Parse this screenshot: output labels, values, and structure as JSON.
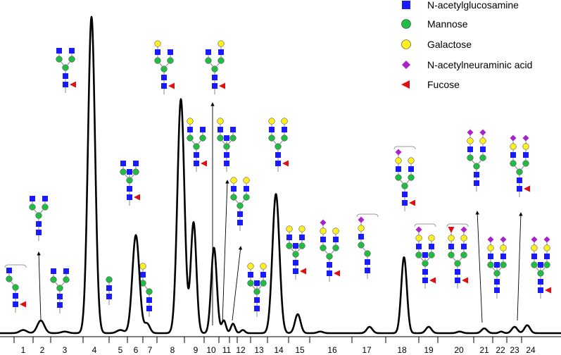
{
  "chart_data": {
    "type": "line",
    "title": "",
    "xlabel": "",
    "ylabel": "",
    "x_tick_labels": [
      "1",
      "2",
      "3",
      "4",
      "5",
      "6",
      "7",
      "8",
      "9",
      "10",
      "11",
      "12",
      "13",
      "14",
      "15",
      "16",
      "17",
      "18",
      "19",
      "20",
      "21",
      "22",
      "23",
      "24"
    ],
    "peaks": [
      {
        "peak": "1",
        "height": 1
      },
      {
        "peak": "2",
        "height": 4
      },
      {
        "peak": "3",
        "height": 0.5
      },
      {
        "peak": "4",
        "height": 100
      },
      {
        "peak": "5",
        "height": 1
      },
      {
        "peak": "6",
        "height": 31
      },
      {
        "peak": "7",
        "height": 3
      },
      {
        "peak": "8",
        "height": 74
      },
      {
        "peak": "9",
        "height": 35
      },
      {
        "peak": "10",
        "height": 27
      },
      {
        "peak": "11",
        "height": 4
      },
      {
        "peak": "12",
        "height": 3
      },
      {
        "peak": "13",
        "height": 1
      },
      {
        "peak": "14",
        "height": 44
      },
      {
        "peak": "15",
        "height": 6
      },
      {
        "peak": "16",
        "height": 0.5
      },
      {
        "peak": "17",
        "height": 2
      },
      {
        "peak": "18",
        "height": 24
      },
      {
        "peak": "19",
        "height": 2
      },
      {
        "peak": "20",
        "height": 0.5
      },
      {
        "peak": "21",
        "height": 1.5
      },
      {
        "peak": "22",
        "height": 0.5
      },
      {
        "peak": "23",
        "height": 2
      },
      {
        "peak": "24",
        "height": 2.5
      }
    ],
    "legend": [
      {
        "name": "N-acetylglucosamine",
        "symbol": "square",
        "color": "#1a1aff"
      },
      {
        "name": "Mannose",
        "symbol": "circle",
        "color": "#22bb44"
      },
      {
        "name": "Galactose",
        "symbol": "circle",
        "color": "#ffee22"
      },
      {
        "name": "N-acetylneuraminic acid",
        "symbol": "diamond",
        "color": "#aa22cc"
      },
      {
        "name": "Fucose",
        "symbol": "triangle",
        "color": "#dd1111"
      }
    ],
    "legend_position": "top-right",
    "grid": false,
    "glycan_structures": [
      {
        "peak": "1",
        "composition": "core fucosylated, single antenna GlcNAc"
      },
      {
        "peak": "2",
        "composition": "biantennary GlcNAc-terminated"
      },
      {
        "peak": "3",
        "composition": "biantennary, one GlcNAc"
      },
      {
        "peak": "4",
        "composition": "biantennary GlcNAc-terminated, core fucose"
      },
      {
        "peak": "5",
        "composition": "Man5"
      },
      {
        "peak": "6",
        "composition": "triantennary GlcNAc-terminated, core fucose"
      },
      {
        "peak": "7",
        "composition": "monogalactosylated"
      },
      {
        "peak": "8",
        "composition": "monogalactosylated, core fucose"
      },
      {
        "peak": "9",
        "composition": "monogalactosylated, core fucose (isomer)"
      },
      {
        "peak": "10",
        "composition": "monogalactosylated, core fucose"
      },
      {
        "peak": "11",
        "composition": "monogalactosylated, bisecting"
      },
      {
        "peak": "12",
        "composition": "digalactosylated"
      },
      {
        "peak": "13",
        "composition": "digalactosylated"
      },
      {
        "peak": "14",
        "composition": "digalactosylated, core fucose"
      },
      {
        "peak": "15",
        "composition": "digalactosylated, core fucose, bisecting"
      },
      {
        "peak": "16",
        "composition": "monosialylated, core fucose"
      },
      {
        "peak": "17",
        "composition": "monosialylated"
      },
      {
        "peak": "18",
        "composition": "monosialylated, core fucose"
      },
      {
        "peak": "19",
        "composition": "monosialylated, core fucose, bisecting"
      },
      {
        "peak": "20",
        "composition": "fucosylated sialylated, core fucose"
      },
      {
        "peak": "21",
        "composition": "disialylated"
      },
      {
        "peak": "22",
        "composition": "disialylated, bisecting"
      },
      {
        "peak": "23",
        "composition": "disialylated, core fucose"
      },
      {
        "peak": "24",
        "composition": "disialylated, core fucose, bisecting"
      }
    ]
  }
}
